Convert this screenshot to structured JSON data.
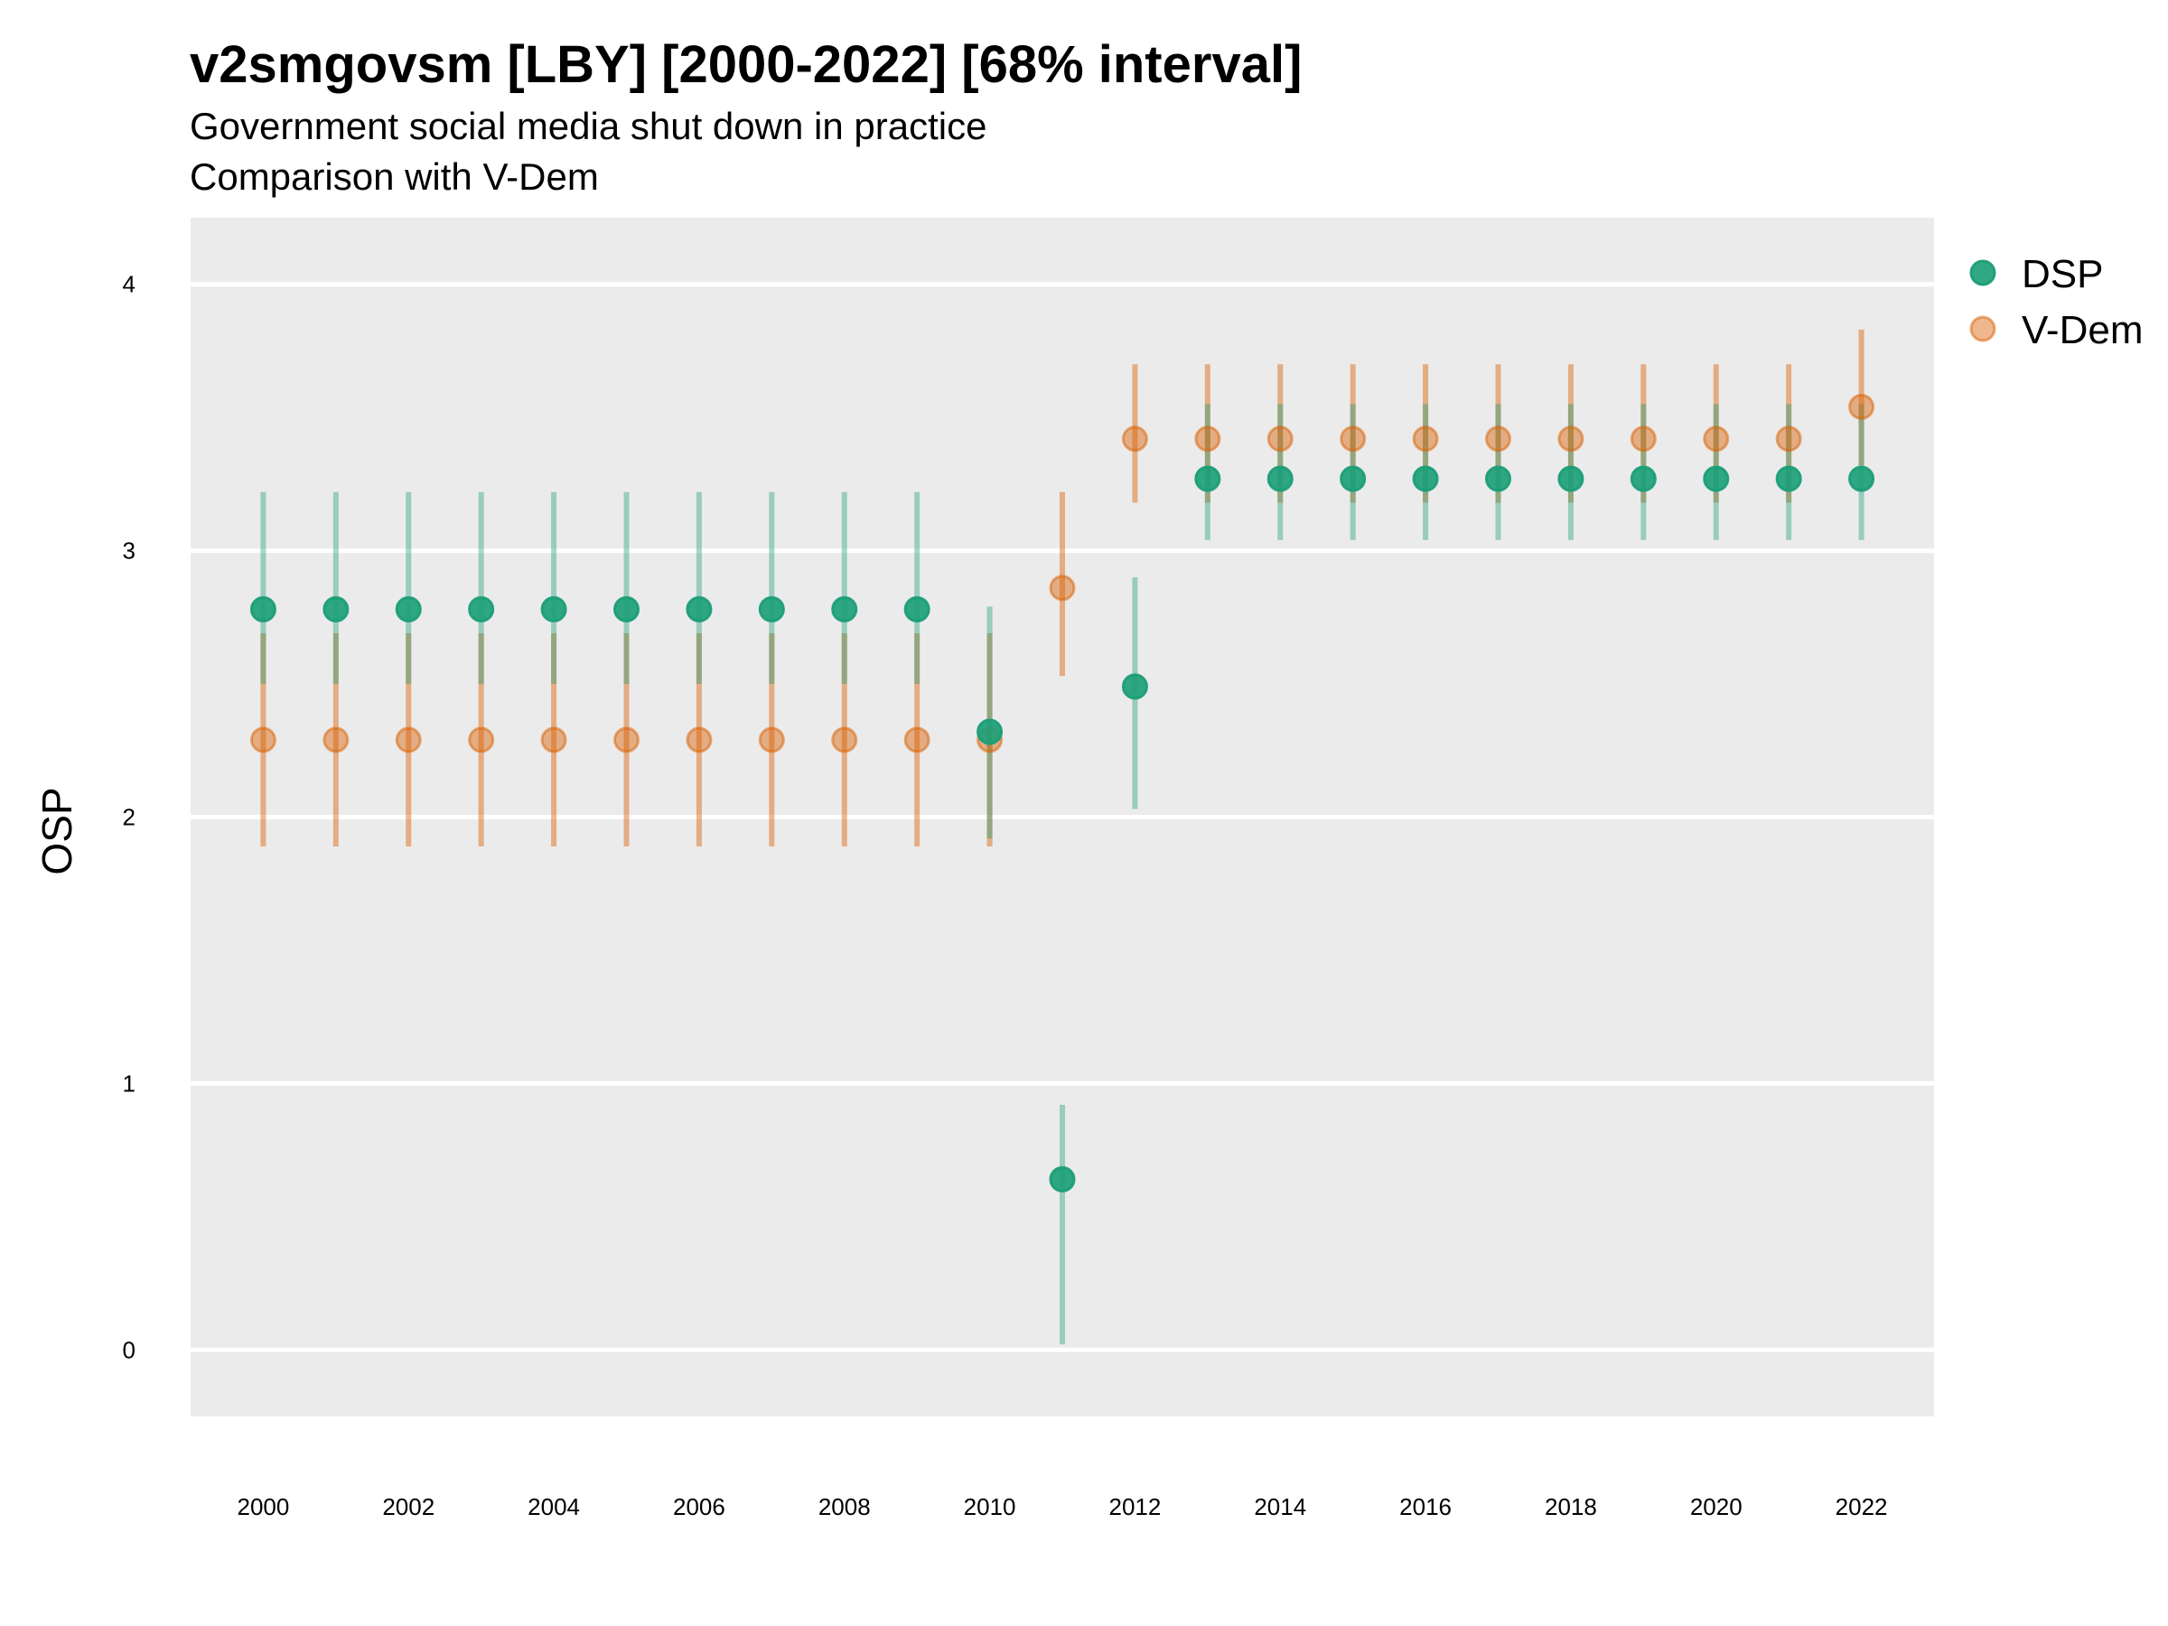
{
  "title": "v2smgovsm [LBY] [2000-2022] [68% interval]",
  "subtitle": "Government social media shut down in practice",
  "caption": "Comparison with V-Dem",
  "chart_data": {
    "type": "scatter",
    "ylabel": "OSP",
    "xlabel": "",
    "ylim": [
      -0.25,
      4.25
    ],
    "xlim": [
      1999,
      2023
    ],
    "yticks": [
      0,
      1,
      2,
      3,
      4
    ],
    "xticks": [
      2000,
      2002,
      2004,
      2006,
      2008,
      2010,
      2012,
      2014,
      2016,
      2018,
      2020,
      2022
    ],
    "grid": "horizontal",
    "legend_position": "right",
    "x": [
      2000,
      2001,
      2002,
      2003,
      2004,
      2005,
      2006,
      2007,
      2008,
      2009,
      2010,
      2011,
      2012,
      2013,
      2014,
      2015,
      2016,
      2017,
      2018,
      2019,
      2020,
      2021,
      2022
    ],
    "series": [
      {
        "name": "DSP",
        "color": "#1b9e77",
        "values": [
          2.78,
          2.78,
          2.78,
          2.78,
          2.78,
          2.78,
          2.78,
          2.78,
          2.78,
          2.78,
          2.32,
          0.64,
          2.49,
          3.27,
          3.27,
          3.27,
          3.27,
          3.27,
          3.27,
          3.27,
          3.27,
          3.27,
          3.27
        ],
        "lower": [
          2.5,
          2.5,
          2.5,
          2.5,
          2.5,
          2.5,
          2.5,
          2.5,
          2.5,
          2.5,
          1.92,
          0.02,
          2.03,
          3.04,
          3.04,
          3.04,
          3.04,
          3.04,
          3.04,
          3.04,
          3.04,
          3.04,
          3.04
        ],
        "upper": [
          3.22,
          3.22,
          3.22,
          3.22,
          3.22,
          3.22,
          3.22,
          3.22,
          3.22,
          3.22,
          2.79,
          0.92,
          2.9,
          3.55,
          3.55,
          3.55,
          3.55,
          3.55,
          3.55,
          3.55,
          3.55,
          3.55,
          3.55
        ]
      },
      {
        "name": "V-Dem",
        "color": "#d95f02",
        "values": [
          2.29,
          2.29,
          2.29,
          2.29,
          2.29,
          2.29,
          2.29,
          2.29,
          2.29,
          2.29,
          2.29,
          2.86,
          3.42,
          3.42,
          3.42,
          3.42,
          3.42,
          3.42,
          3.42,
          3.42,
          3.42,
          3.42,
          3.54
        ],
        "lower": [
          1.89,
          1.89,
          1.89,
          1.89,
          1.89,
          1.89,
          1.89,
          1.89,
          1.89,
          1.89,
          1.89,
          2.53,
          3.18,
          3.18,
          3.18,
          3.18,
          3.18,
          3.18,
          3.18,
          3.18,
          3.18,
          3.18,
          3.32
        ],
        "upper": [
          2.69,
          2.69,
          2.69,
          2.69,
          2.69,
          2.69,
          2.69,
          2.69,
          2.69,
          2.69,
          2.69,
          3.22,
          3.7,
          3.7,
          3.7,
          3.7,
          3.7,
          3.7,
          3.7,
          3.7,
          3.7,
          3.7,
          3.83
        ]
      }
    ]
  }
}
